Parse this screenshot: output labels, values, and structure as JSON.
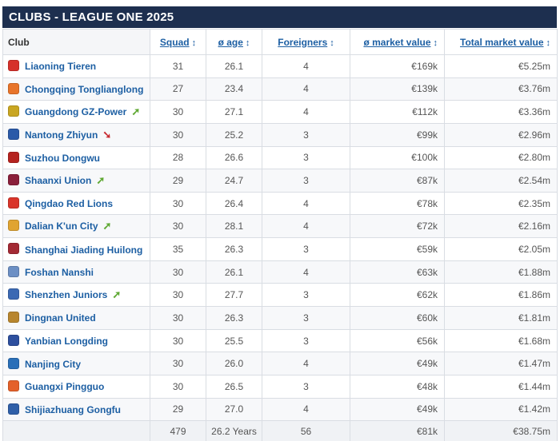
{
  "title": "CLUBS - LEAGUE ONE 2025",
  "columns": {
    "club": "Club",
    "squad": "Squad",
    "age": "ø age",
    "foreigners": "Foreigners",
    "avg_value": "ø market value",
    "total_value": "Total market value"
  },
  "rows": [
    {
      "club": "Liaoning Tieren",
      "squad": "31",
      "age": "26.1",
      "foreigners": "4",
      "avg_value": "€169k",
      "total_value": "€5.25m",
      "arrow": "",
      "crest_color": "#d6312b"
    },
    {
      "club": "Chongqing Tonglianglong",
      "squad": "27",
      "age": "23.4",
      "foreigners": "4",
      "avg_value": "€139k",
      "total_value": "€3.76m",
      "arrow": "",
      "crest_color": "#e8742a"
    },
    {
      "club": "Guangdong GZ-Power",
      "squad": "30",
      "age": "27.1",
      "foreigners": "4",
      "avg_value": "€112k",
      "total_value": "€3.36m",
      "arrow": "up",
      "crest_color": "#c9a622"
    },
    {
      "club": "Nantong Zhiyun",
      "squad": "30",
      "age": "25.2",
      "foreigners": "3",
      "avg_value": "€99k",
      "total_value": "€2.96m",
      "arrow": "down",
      "crest_color": "#2b5aa8"
    },
    {
      "club": "Suzhou Dongwu",
      "squad": "28",
      "age": "26.6",
      "foreigners": "3",
      "avg_value": "€100k",
      "total_value": "€2.80m",
      "arrow": "",
      "crest_color": "#b5231f"
    },
    {
      "club": "Shaanxi Union",
      "squad": "29",
      "age": "24.7",
      "foreigners": "3",
      "avg_value": "€87k",
      "total_value": "€2.54m",
      "arrow": "up",
      "crest_color": "#8a1f3a"
    },
    {
      "club": "Qingdao Red Lions",
      "squad": "30",
      "age": "26.4",
      "foreigners": "4",
      "avg_value": "€78k",
      "total_value": "€2.35m",
      "arrow": "",
      "crest_color": "#d9342a"
    },
    {
      "club": "Dalian K'un City",
      "squad": "30",
      "age": "28.1",
      "foreigners": "4",
      "avg_value": "€72k",
      "total_value": "€2.16m",
      "arrow": "up",
      "crest_color": "#e0a431"
    },
    {
      "club": "Shanghai Jiading Huilong",
      "squad": "35",
      "age": "26.3",
      "foreigners": "3",
      "avg_value": "€59k",
      "total_value": "€2.05m",
      "arrow": "",
      "crest_color": "#a32a34"
    },
    {
      "club": "Foshan Nanshi",
      "squad": "30",
      "age": "26.1",
      "foreigners": "4",
      "avg_value": "€63k",
      "total_value": "€1.88m",
      "arrow": "",
      "crest_color": "#6c8fc4"
    },
    {
      "club": "Shenzhen Juniors",
      "squad": "30",
      "age": "27.7",
      "foreigners": "3",
      "avg_value": "€62k",
      "total_value": "€1.86m",
      "arrow": "up",
      "crest_color": "#3b69b3"
    },
    {
      "club": "Dingnan United",
      "squad": "30",
      "age": "26.3",
      "foreigners": "3",
      "avg_value": "€60k",
      "total_value": "€1.81m",
      "arrow": "",
      "crest_color": "#b8862e"
    },
    {
      "club": "Yanbian Longding",
      "squad": "30",
      "age": "25.5",
      "foreigners": "3",
      "avg_value": "€56k",
      "total_value": "€1.68m",
      "arrow": "",
      "crest_color": "#2d4f9e"
    },
    {
      "club": "Nanjing City",
      "squad": "30",
      "age": "26.0",
      "foreigners": "4",
      "avg_value": "€49k",
      "total_value": "€1.47m",
      "arrow": "",
      "crest_color": "#2a6fb8"
    },
    {
      "club": "Guangxi Pingguo",
      "squad": "30",
      "age": "26.5",
      "foreigners": "3",
      "avg_value": "€48k",
      "total_value": "€1.44m",
      "arrow": "",
      "crest_color": "#e4612a"
    },
    {
      "club": "Shijiazhuang Gongfu",
      "squad": "29",
      "age": "27.0",
      "foreigners": "4",
      "avg_value": "€49k",
      "total_value": "€1.42m",
      "arrow": "",
      "crest_color": "#2f5fa8"
    }
  ],
  "totals": {
    "squad": "479",
    "age": "26.2 Years",
    "foreigners": "56",
    "avg_value": "€81k",
    "total_value": "€38.75m"
  }
}
